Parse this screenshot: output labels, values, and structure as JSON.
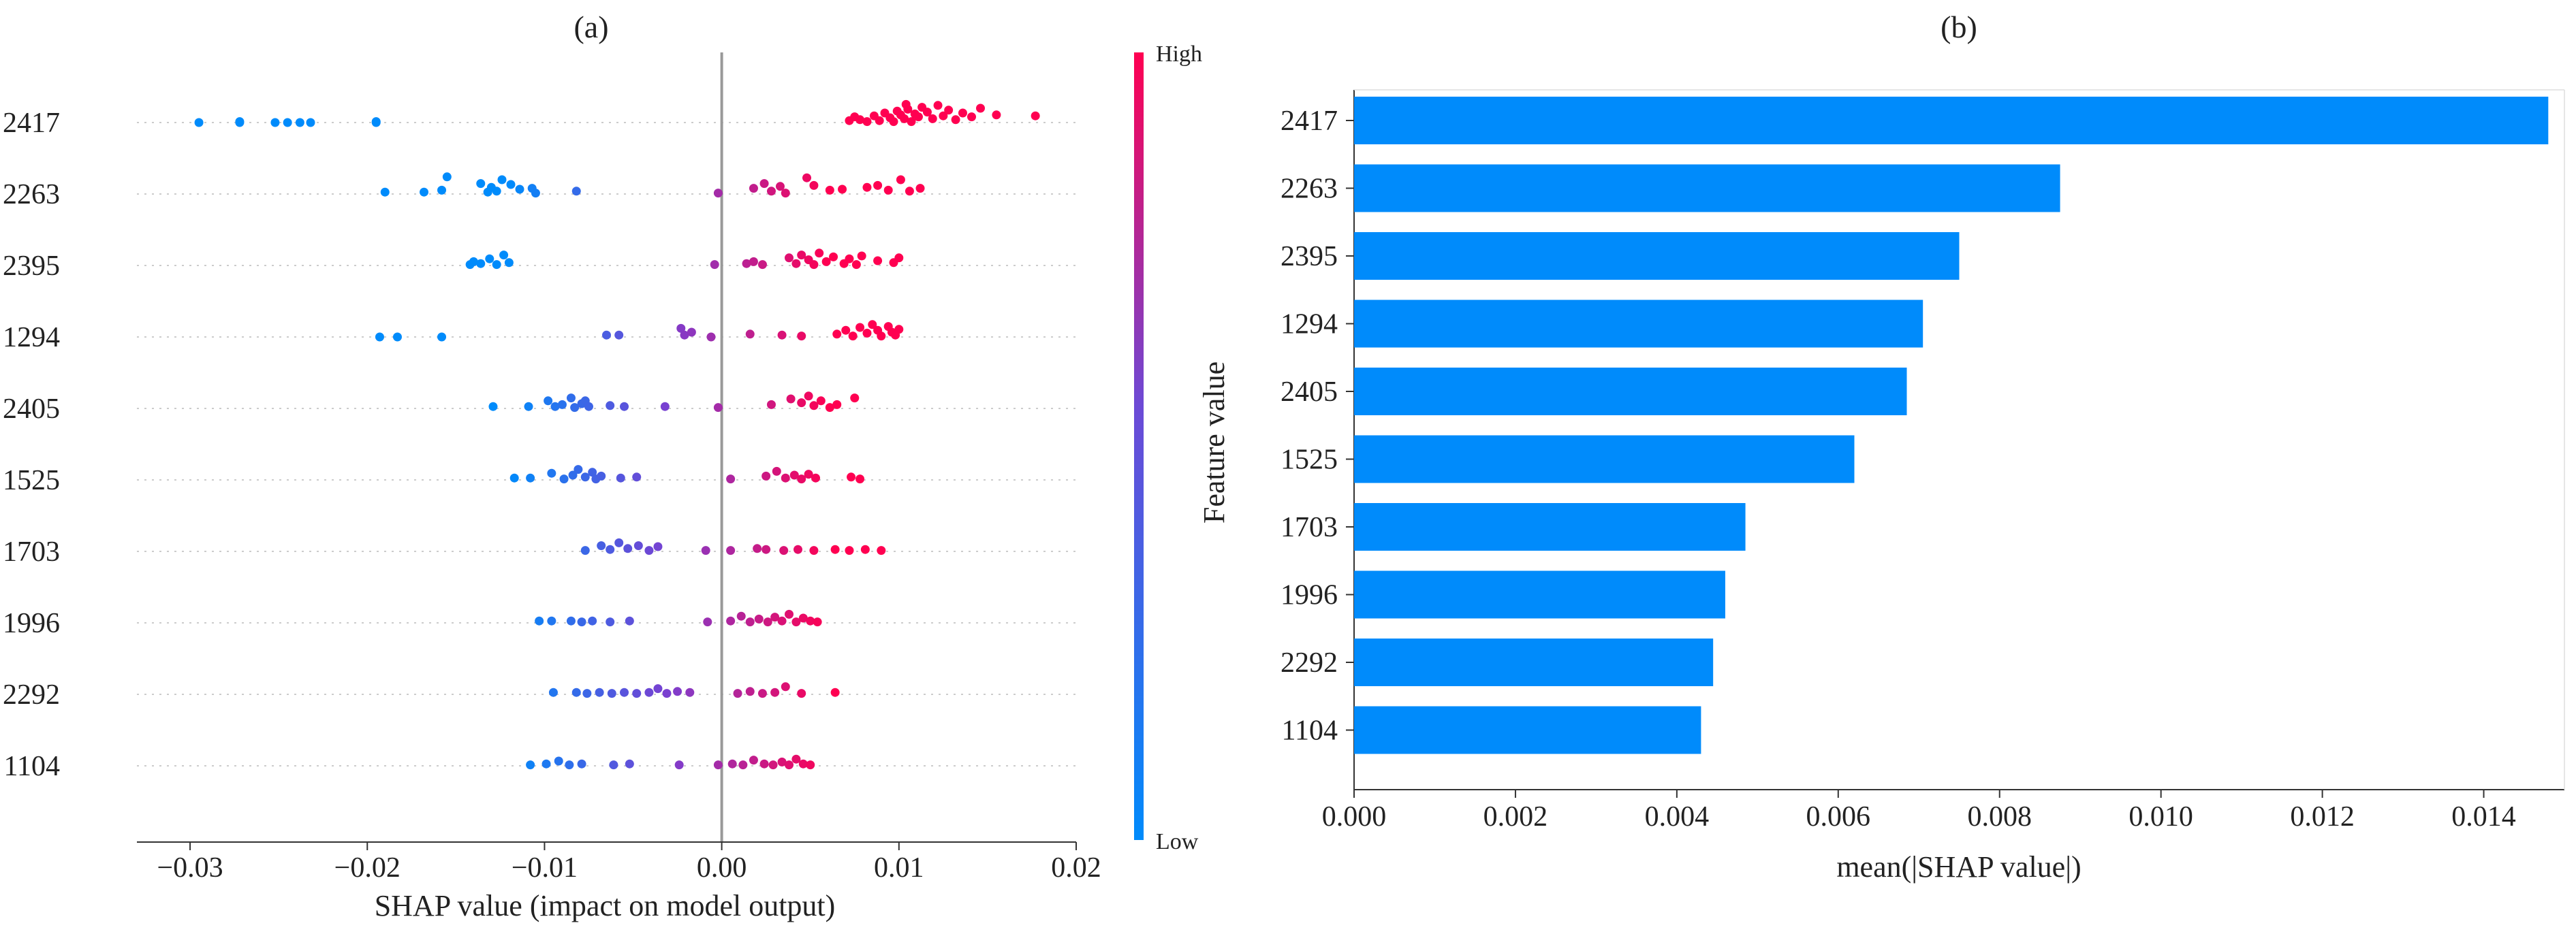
{
  "chart_data": [
    {
      "type": "scatter",
      "subtype": "shap-beeswarm",
      "title": "(a)",
      "xlabel": "SHAP value (impact on model output)",
      "ylabel": "",
      "xlim": [
        -0.033,
        0.02
      ],
      "xticks": [
        -0.03,
        -0.02,
        -0.01,
        0.0,
        0.01,
        0.02
      ],
      "xtick_labels": [
        "−0.03",
        "−0.02",
        "−0.01",
        "0.00",
        "0.01",
        "0.02"
      ],
      "zero_line": 0.0,
      "colorbar": {
        "high_label": "High",
        "low_label": "Low",
        "high_color": "#ff0051",
        "low_color": "#008bfb"
      },
      "features": [
        {
          "name": "2417",
          "points": [
            [
              -0.0295,
              0
            ],
            [
              -0.0272,
              0.05
            ],
            [
              -0.0272,
              0
            ],
            [
              -0.0252,
              0
            ],
            [
              -0.0245,
              0
            ],
            [
              -0.0238,
              0
            ],
            [
              -0.0232,
              0
            ],
            [
              -0.0195,
              0.05
            ],
            [
              -0.0195,
              0
            ],
            [
              0.0072,
              0.1
            ],
            [
              0.0075,
              0.3
            ],
            [
              0.0078,
              0.15
            ],
            [
              0.0082,
              0.05
            ],
            [
              0.0086,
              0.35
            ],
            [
              0.0089,
              0.1
            ],
            [
              0.0092,
              0.5
            ],
            [
              0.0095,
              0.25
            ],
            [
              0.0097,
              0.05
            ],
            [
              0.0099,
              0.6
            ],
            [
              0.0101,
              0.4
            ],
            [
              0.0103,
              0.2
            ],
            [
              0.0104,
              0.95
            ],
            [
              0.0105,
              0.7
            ],
            [
              0.0107,
              0.05
            ],
            [
              0.0109,
              0.45
            ],
            [
              0.0111,
              0.3
            ],
            [
              0.0113,
              0.8
            ],
            [
              0.0116,
              0.55
            ],
            [
              0.0119,
              0.2
            ],
            [
              0.0122,
              0.9
            ],
            [
              0.0125,
              0.35
            ],
            [
              0.0128,
              0.65
            ],
            [
              0.0132,
              0.15
            ],
            [
              0.0136,
              0.5
            ],
            [
              0.0141,
              0.3
            ],
            [
              0.0146,
              0.75
            ],
            [
              0.0155,
              0.4
            ],
            [
              0.0177,
              0.35
            ]
          ]
        },
        {
          "name": "2263",
          "points": [
            [
              -0.019,
              0.1
            ],
            [
              -0.0168,
              0.1
            ],
            [
              -0.0158,
              0.2
            ],
            [
              -0.0155,
              0.9
            ],
            [
              -0.0136,
              0.55
            ],
            [
              -0.0132,
              0.1
            ],
            [
              -0.013,
              0.35
            ],
            [
              -0.0127,
              0.15
            ],
            [
              -0.0124,
              0.75
            ],
            [
              -0.0119,
              0.5
            ],
            [
              -0.0114,
              0.25
            ],
            [
              -0.0107,
              0.3
            ],
            [
              -0.0105,
              0.05
            ],
            [
              -0.0082,
              0.15
            ],
            [
              -0.0002,
              0.05
            ],
            [
              0.0018,
              0.3
            ],
            [
              0.0024,
              0.55
            ],
            [
              0.0028,
              0.15
            ],
            [
              0.0033,
              0.4
            ],
            [
              0.0036,
              0.05
            ],
            [
              0.0048,
              0.85
            ],
            [
              0.0052,
              0.45
            ],
            [
              0.0061,
              0.2
            ],
            [
              0.0068,
              0.25
            ],
            [
              0.0082,
              0.35
            ],
            [
              0.0088,
              0.45
            ],
            [
              0.0094,
              0.2
            ],
            [
              0.0101,
              0.75
            ],
            [
              0.0106,
              0.15
            ],
            [
              0.0112,
              0.3
            ]
          ]
        },
        {
          "name": "2395",
          "points": [
            [
              -0.0142,
              0.05
            ],
            [
              -0.014,
              0.2
            ],
            [
              -0.0136,
              0.1
            ],
            [
              -0.0131,
              0.35
            ],
            [
              -0.0127,
              0.05
            ],
            [
              -0.0123,
              0.55
            ],
            [
              -0.012,
              0.15
            ],
            [
              -0.0004,
              0.05
            ],
            [
              0.0014,
              0.1
            ],
            [
              0.0018,
              0.2
            ],
            [
              0.0023,
              0.05
            ],
            [
              0.0038,
              0.4
            ],
            [
              0.0042,
              0.1
            ],
            [
              0.0045,
              0.55
            ],
            [
              0.0049,
              0.3
            ],
            [
              0.0052,
              0.05
            ],
            [
              0.0055,
              0.65
            ],
            [
              0.0059,
              0.2
            ],
            [
              0.0063,
              0.45
            ],
            [
              0.0069,
              0.1
            ],
            [
              0.0072,
              0.35
            ],
            [
              0.0076,
              0.05
            ],
            [
              0.0079,
              0.5
            ],
            [
              0.0088,
              0.25
            ],
            [
              0.0097,
              0.15
            ],
            [
              0.01,
              0.4
            ]
          ]
        },
        {
          "name": "1294",
          "points": [
            [
              -0.0193,
              0
            ],
            [
              -0.0183,
              0
            ],
            [
              -0.0158,
              0
            ],
            [
              -0.0065,
              0.1
            ],
            [
              -0.0058,
              0.1
            ],
            [
              -0.0023,
              0.45
            ],
            [
              -0.0021,
              0.1
            ],
            [
              -0.0017,
              0.25
            ],
            [
              -0.0006,
              0
            ],
            [
              0.0016,
              0.15
            ],
            [
              0.0034,
              0.1
            ],
            [
              0.0045,
              0.05
            ],
            [
              0.0065,
              0.15
            ],
            [
              0.007,
              0.35
            ],
            [
              0.0074,
              0.05
            ],
            [
              0.0078,
              0.5
            ],
            [
              0.0082,
              0.2
            ],
            [
              0.0085,
              0.65
            ],
            [
              0.0088,
              0.35
            ],
            [
              0.009,
              0.05
            ],
            [
              0.0094,
              0.55
            ],
            [
              0.0096,
              0.25
            ],
            [
              0.0098,
              0.1
            ],
            [
              0.01,
              0.4
            ]
          ]
        },
        {
          "name": "2405",
          "points": [
            [
              -0.0129,
              0.1
            ],
            [
              -0.0109,
              0.1
            ],
            [
              -0.0098,
              0.4
            ],
            [
              -0.0094,
              0.1
            ],
            [
              -0.009,
              0.2
            ],
            [
              -0.0085,
              0.55
            ],
            [
              -0.0083,
              0.05
            ],
            [
              -0.0079,
              0.25
            ],
            [
              -0.0077,
              0.4
            ],
            [
              -0.0075,
              0.1
            ],
            [
              -0.0063,
              0.15
            ],
            [
              -0.0055,
              0.1
            ],
            [
              -0.0032,
              0.1
            ],
            [
              -0.0002,
              0.05
            ],
            [
              0.0028,
              0.2
            ],
            [
              0.0039,
              0.5
            ],
            [
              0.0045,
              0.3
            ],
            [
              0.0049,
              0.65
            ],
            [
              0.0052,
              0.15
            ],
            [
              0.0056,
              0.4
            ],
            [
              0.0061,
              0.05
            ],
            [
              0.0065,
              0.2
            ],
            [
              0.0075,
              0.55
            ]
          ]
        },
        {
          "name": "1525",
          "points": [
            [
              -0.0117,
              0.1
            ],
            [
              -0.0108,
              0.1
            ],
            [
              -0.0096,
              0.35
            ],
            [
              -0.0089,
              0.05
            ],
            [
              -0.0084,
              0.25
            ],
            [
              -0.0081,
              0.55
            ],
            [
              -0.0077,
              0.15
            ],
            [
              -0.0073,
              0.4
            ],
            [
              -0.0071,
              0.05
            ],
            [
              -0.0068,
              0.2
            ],
            [
              -0.0057,
              0.1
            ],
            [
              -0.0048,
              0.15
            ],
            [
              0.0005,
              0.05
            ],
            [
              0.0025,
              0.2
            ],
            [
              0.0031,
              0.45
            ],
            [
              0.0036,
              0.1
            ],
            [
              0.0041,
              0.25
            ],
            [
              0.0045,
              0.05
            ],
            [
              0.0049,
              0.3
            ],
            [
              0.0053,
              0.1
            ],
            [
              0.0073,
              0.15
            ],
            [
              0.0078,
              0.05
            ]
          ]
        },
        {
          "name": "1703",
          "points": [
            [
              -0.0077,
              0.05
            ],
            [
              -0.0068,
              0.3
            ],
            [
              -0.0063,
              0.1
            ],
            [
              -0.0058,
              0.45
            ],
            [
              -0.0053,
              0.15
            ],
            [
              -0.0047,
              0.3
            ],
            [
              -0.0041,
              0.05
            ],
            [
              -0.0036,
              0.25
            ],
            [
              -0.0009,
              0.05
            ],
            [
              0.0005,
              0.05
            ],
            [
              0.002,
              0.15
            ],
            [
              0.0025,
              0.1
            ],
            [
              0.0035,
              0.05
            ],
            [
              0.0043,
              0.1
            ],
            [
              0.0052,
              0.05
            ],
            [
              0.0064,
              0.1
            ],
            [
              0.0072,
              0.05
            ],
            [
              0.0081,
              0.1
            ],
            [
              0.009,
              0.05
            ]
          ]
        },
        {
          "name": "1996",
          "points": [
            [
              -0.0103,
              0.1
            ],
            [
              -0.0096,
              0.1
            ],
            [
              -0.0085,
              0.1
            ],
            [
              -0.0079,
              0.05
            ],
            [
              -0.0073,
              0.1
            ],
            [
              -0.0063,
              0.05
            ],
            [
              -0.0052,
              0.1
            ],
            [
              -0.0008,
              0.05
            ],
            [
              0.0005,
              0.1
            ],
            [
              0.0011,
              0.35
            ],
            [
              0.0016,
              0.05
            ],
            [
              0.0021,
              0.2
            ],
            [
              0.0026,
              0.05
            ],
            [
              0.003,
              0.3
            ],
            [
              0.0034,
              0.1
            ],
            [
              0.0038,
              0.45
            ],
            [
              0.0042,
              0.05
            ],
            [
              0.0046,
              0.25
            ],
            [
              0.005,
              0.1
            ],
            [
              0.0054,
              0.05
            ]
          ]
        },
        {
          "name": "2292",
          "points": [
            [
              -0.0095,
              0.1
            ],
            [
              -0.0082,
              0.1
            ],
            [
              -0.0076,
              0.05
            ],
            [
              -0.0069,
              0.1
            ],
            [
              -0.0062,
              0.05
            ],
            [
              -0.0055,
              0.1
            ],
            [
              -0.0048,
              0.05
            ],
            [
              -0.0041,
              0.1
            ],
            [
              -0.0036,
              0.3
            ],
            [
              -0.0031,
              0.05
            ],
            [
              -0.0025,
              0.15
            ],
            [
              -0.0018,
              0.1
            ],
            [
              0.0009,
              0.05
            ],
            [
              0.0016,
              0.15
            ],
            [
              0.0023,
              0.05
            ],
            [
              0.003,
              0.1
            ],
            [
              0.0036,
              0.4
            ],
            [
              0.0045,
              0.05
            ],
            [
              0.0064,
              0.1
            ]
          ]
        },
        {
          "name": "1104",
          "points": [
            [
              -0.0108,
              0.05
            ],
            [
              -0.0099,
              0.1
            ],
            [
              -0.0092,
              0.25
            ],
            [
              -0.0086,
              0.05
            ],
            [
              -0.0079,
              0.1
            ],
            [
              -0.0061,
              0.05
            ],
            [
              -0.0052,
              0.1
            ],
            [
              -0.0024,
              0.05
            ],
            [
              -0.0002,
              0.05
            ],
            [
              0.0006,
              0.1
            ],
            [
              0.0012,
              0.05
            ],
            [
              0.0018,
              0.3
            ],
            [
              0.0024,
              0.1
            ],
            [
              0.0029,
              0.05
            ],
            [
              0.0034,
              0.2
            ],
            [
              0.0038,
              0.05
            ],
            [
              0.0042,
              0.35
            ],
            [
              0.0046,
              0.1
            ],
            [
              0.005,
              0.05
            ]
          ]
        }
      ]
    },
    {
      "type": "bar",
      "orientation": "horizontal",
      "title": "(b)",
      "xlabel": "mean(|SHAP value|)",
      "ylabel": "Feature value",
      "xlim": [
        0,
        0.015
      ],
      "xticks": [
        0.0,
        0.002,
        0.004,
        0.006,
        0.008,
        0.01,
        0.012,
        0.014
      ],
      "xtick_labels": [
        "0.000",
        "0.002",
        "0.004",
        "0.006",
        "0.008",
        "0.010",
        "0.012",
        "0.014"
      ],
      "bar_color": "#008bfb",
      "categories": [
        "2417",
        "2263",
        "2395",
        "1294",
        "2405",
        "1525",
        "1703",
        "1996",
        "2292",
        "1104"
      ],
      "values": [
        0.0148,
        0.00875,
        0.0075,
        0.00705,
        0.00685,
        0.0062,
        0.00485,
        0.0046,
        0.00445,
        0.0043
      ]
    }
  ]
}
